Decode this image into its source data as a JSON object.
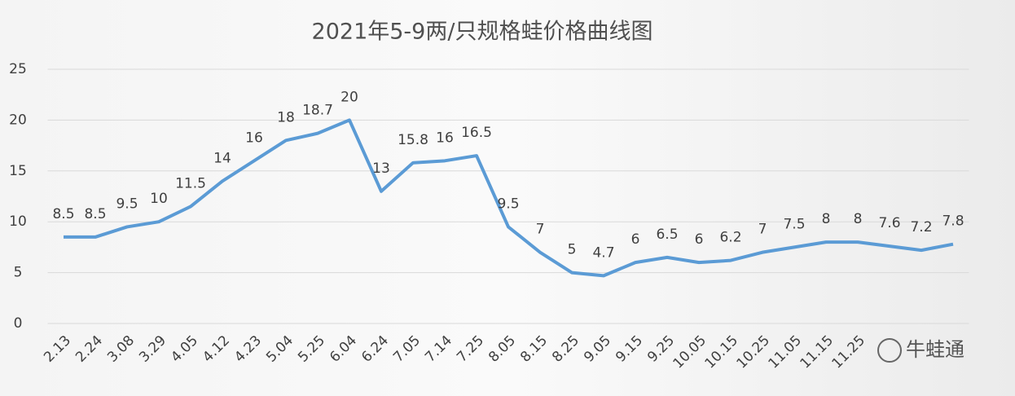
{
  "chart_data": {
    "type": "line",
    "title": "2021年5-9两/只规格蛙价格曲线图",
    "categories": [
      "2.13",
      "2.24",
      "3.08",
      "3.29",
      "4.05",
      "4.12",
      "4.23",
      "5.04",
      "5.25",
      "6.04",
      "6.24",
      "7.05",
      "7.14",
      "7.25",
      "8.05",
      "8.15",
      "8.25",
      "9.05",
      "9.15",
      "9.25",
      "10.05",
      "10.15",
      "10.25",
      "11.05",
      "11.15",
      "11.25",
      null,
      null,
      null
    ],
    "values": [
      8.5,
      8.5,
      9.5,
      10,
      11.5,
      14,
      16,
      18,
      18.7,
      20,
      13,
      15.8,
      16,
      16.5,
      9.5,
      7,
      5,
      4.7,
      6,
      6.5,
      6,
      6.2,
      7,
      7.5,
      8,
      8,
      7.6,
      7.2,
      7.8
    ],
    "color": "#5b9bd5",
    "ylim": [
      0,
      25
    ],
    "yticks": [
      0,
      5,
      10,
      15,
      20,
      25
    ],
    "grid": true,
    "watermark": "牛蛙通"
  }
}
